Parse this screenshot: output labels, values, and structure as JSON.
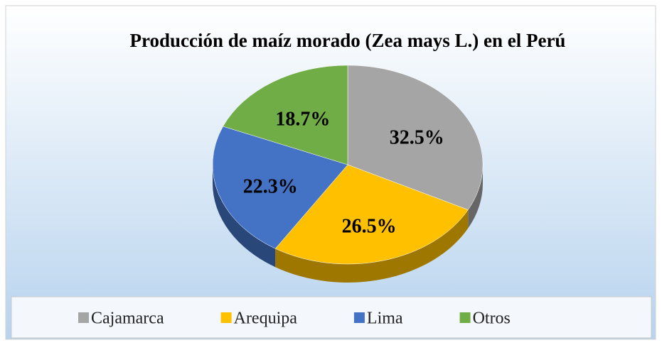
{
  "chart_data": {
    "type": "pie3d",
    "title": "Producción de maíz morado (Zea mays L.) en el Perú",
    "categories": [
      "Cajamarca",
      "Arequipa",
      "Lima",
      "Otros"
    ],
    "values": [
      32.5,
      26.5,
      22.3,
      18.7
    ],
    "value_labels": [
      "32.5%",
      "26.5%",
      "22.3%",
      "18.7%"
    ],
    "colors": [
      "#a5a5a5",
      "#ffc000",
      "#4472c4",
      "#70ad47"
    ],
    "legend": "bottom"
  }
}
